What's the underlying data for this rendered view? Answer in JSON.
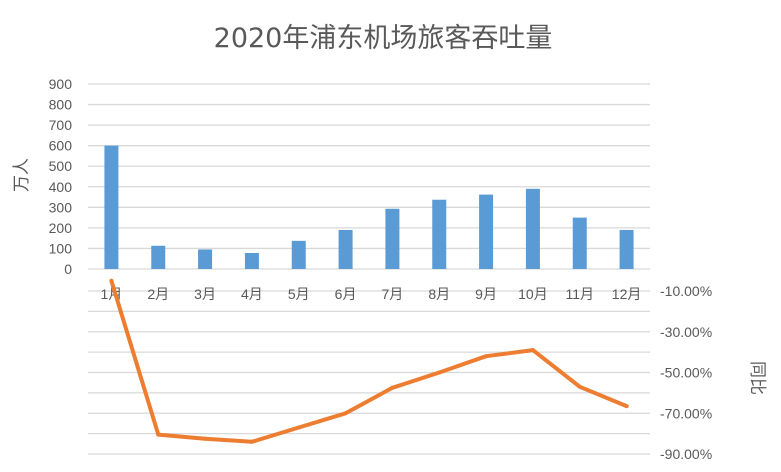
{
  "chart_data": {
    "type": "bar+line",
    "title": "2020年浦东机场旅客吞吐量",
    "categories": [
      "1月",
      "2月",
      "3月",
      "4月",
      "5月",
      "6月",
      "7月",
      "8月",
      "9月",
      "10月",
      "11月",
      "12月"
    ],
    "series": [
      {
        "type": "bar",
        "axis": "left",
        "color": "#5B9BD5",
        "values": [
          600,
          113,
          95,
          78,
          137,
          190,
          293,
          337,
          362,
          390,
          250,
          190
        ]
      },
      {
        "type": "line",
        "axis": "right",
        "color": "#ED7D31",
        "values": [
          -5.0,
          -80.5,
          -82.5,
          -84.0,
          -77.0,
          -70.0,
          -57.5,
          -50.0,
          -42.0,
          -39.0,
          -57.0,
          -66.5
        ]
      }
    ],
    "y_left": {
      "label": "万人",
      "range": [
        0,
        900
      ],
      "ticks": [
        0,
        100,
        200,
        300,
        400,
        500,
        600,
        700,
        800,
        900
      ]
    },
    "y_right": {
      "label": "同比",
      "range": [
        -90,
        -10
      ],
      "ticks": [
        -10,
        -30,
        -50,
        -70,
        -90
      ],
      "tick_labels": [
        "-10.00%",
        "-30.00%",
        "-50.00%",
        "-70.00%",
        "-90.00%"
      ]
    },
    "grid": true,
    "legend": "none"
  }
}
